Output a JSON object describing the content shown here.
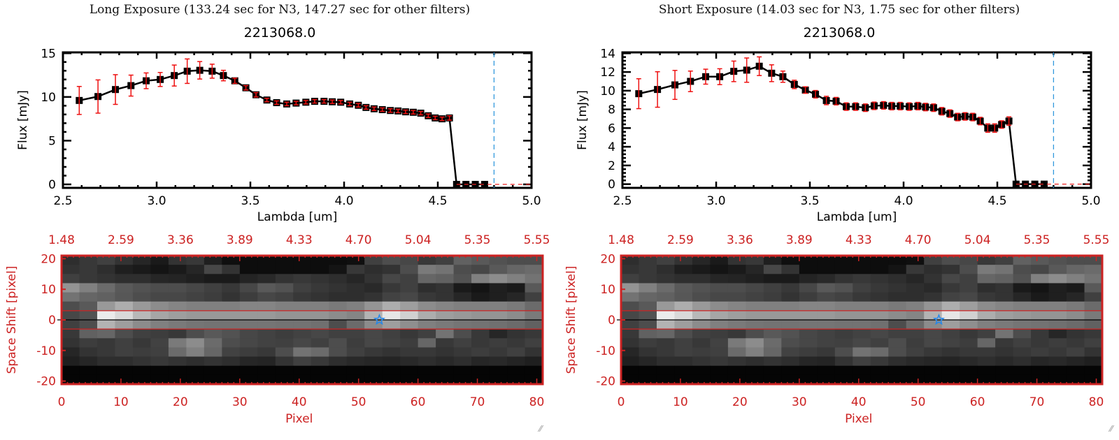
{
  "chart_data": [
    {
      "type": "line",
      "panel": "left",
      "title": "Long Exposure (133.24 sec for N3, 147.27 sec for other filters)",
      "subtitle": "2213068.0",
      "xlabel": "Lambda [um]",
      "ylabel": "Flux [mJy]",
      "xlim": [
        2.5,
        5.0
      ],
      "ylim": [
        -0.4,
        15.1
      ],
      "xticks": [
        "2.5",
        "3.0",
        "3.5",
        "4.0",
        "4.5",
        "5.0"
      ],
      "xtick_values": [
        2.5,
        3.0,
        3.5,
        4.0,
        4.5,
        5.0
      ],
      "yticks": [
        "0",
        "5",
        "10",
        "15"
      ],
      "ytick_values": [
        0,
        5,
        10,
        15
      ],
      "vline": 4.8,
      "hline": 0,
      "series": [
        {
          "name": "flux",
          "x": [
            2.587,
            2.687,
            2.78,
            2.863,
            2.944,
            3.019,
            3.094,
            3.163,
            3.23,
            3.296,
            3.356,
            3.417,
            3.476,
            3.53,
            3.588,
            3.64,
            3.694,
            3.744,
            3.796,
            3.843,
            3.893,
            3.937,
            3.982,
            4.03,
            4.076,
            4.117,
            4.16,
            4.204,
            4.247,
            4.288,
            4.328,
            4.369,
            4.409,
            4.449,
            4.486,
            4.523,
            4.562,
            4.6,
            4.65,
            4.7,
            4.75
          ],
          "y": [
            9.6,
            10.05,
            10.85,
            11.3,
            11.85,
            12.0,
            12.45,
            12.95,
            13.05,
            12.95,
            12.45,
            11.85,
            11.05,
            10.25,
            9.65,
            9.35,
            9.2,
            9.3,
            9.4,
            9.5,
            9.5,
            9.45,
            9.4,
            9.2,
            9.05,
            8.8,
            8.65,
            8.55,
            8.45,
            8.4,
            8.3,
            8.25,
            8.15,
            7.85,
            7.6,
            7.5,
            7.6,
            0,
            0,
            0,
            0
          ],
          "err": [
            1.6,
            1.9,
            1.7,
            1.2,
            0.9,
            0.8,
            1.2,
            1.4,
            1.0,
            0.8,
            0.6,
            0.3,
            0.25,
            0.25,
            0.2,
            0.2,
            0.2,
            0.2,
            0.2,
            0.2,
            0.2,
            0.2,
            0.2,
            0.2,
            0.2,
            0.2,
            0.2,
            0.2,
            0.2,
            0.2,
            0.2,
            0.2,
            0.2,
            0.2,
            0.2,
            0.2,
            0.25,
            0,
            0,
            0,
            0
          ]
        }
      ]
    },
    {
      "type": "line",
      "panel": "right",
      "title": "Short Exposure (14.03 sec for N3, 1.75 sec for other filters)",
      "subtitle": "2213068.0",
      "xlabel": "Lambda [um]",
      "ylabel": "Flux [mJy]",
      "xlim": [
        2.5,
        5.0
      ],
      "ylim": [
        -0.4,
        14.1
      ],
      "xticks": [
        "2.5",
        "3.0",
        "3.5",
        "4.0",
        "4.5",
        "5.0"
      ],
      "xtick_values": [
        2.5,
        3.0,
        3.5,
        4.0,
        4.5,
        5.0
      ],
      "yticks": [
        "0",
        "2",
        "4",
        "6",
        "8",
        "10",
        "12",
        "14"
      ],
      "ytick_values": [
        0,
        2,
        4,
        6,
        8,
        10,
        12,
        14
      ],
      "vline": 4.8,
      "hline": 0,
      "series": [
        {
          "name": "flux",
          "x": [
            2.587,
            2.687,
            2.78,
            2.863,
            2.944,
            3.019,
            3.094,
            3.163,
            3.23,
            3.296,
            3.356,
            3.417,
            3.476,
            3.53,
            3.588,
            3.64,
            3.694,
            3.744,
            3.796,
            3.843,
            3.893,
            3.937,
            3.982,
            4.03,
            4.076,
            4.117,
            4.16,
            4.204,
            4.247,
            4.288,
            4.328,
            4.369,
            4.409,
            4.449,
            4.486,
            4.523,
            4.562,
            4.6,
            4.65,
            4.7,
            4.75
          ],
          "y": [
            9.68,
            10.13,
            10.62,
            11.0,
            11.5,
            11.5,
            12.07,
            12.2,
            12.62,
            11.87,
            11.5,
            10.67,
            10.07,
            9.62,
            8.95,
            8.88,
            8.3,
            8.3,
            8.18,
            8.38,
            8.43,
            8.35,
            8.35,
            8.3,
            8.35,
            8.25,
            8.18,
            7.8,
            7.55,
            7.18,
            7.25,
            7.18,
            6.75,
            6.0,
            6.0,
            6.38,
            6.75,
            0,
            0,
            0,
            0
          ],
          "err": [
            1.6,
            1.9,
            1.55,
            1.1,
            0.8,
            0.85,
            1.1,
            1.3,
            1.0,
            0.9,
            0.6,
            0.45,
            0.35,
            0.4,
            0.45,
            0.4,
            0.4,
            0.4,
            0.4,
            0.4,
            0.4,
            0.4,
            0.4,
            0.4,
            0.4,
            0.4,
            0.4,
            0.4,
            0.4,
            0.4,
            0.4,
            0.4,
            0.4,
            0.45,
            0.45,
            0.4,
            0.45,
            0,
            0,
            0,
            0
          ]
        }
      ]
    },
    {
      "type": "heatmap",
      "panel": "both",
      "xlabel": "Pixel",
      "ylabel": "Space Shift [pixel]",
      "xlim": [
        0,
        81
      ],
      "ylim": [
        -21,
        21
      ],
      "xticks": [
        "0",
        "10",
        "20",
        "30",
        "40",
        "50",
        "60",
        "70",
        "80"
      ],
      "xtick_values": [
        0,
        10,
        20,
        30,
        40,
        50,
        60,
        70,
        80
      ],
      "yticks": [
        "20",
        "10",
        "0",
        "-10",
        "-20"
      ],
      "ytick_values": [
        20,
        10,
        0,
        -10,
        -20
      ],
      "top_xticks": [
        "1.48",
        "2.59",
        "3.36",
        "3.89",
        "4.33",
        "4.70",
        "5.04",
        "5.35",
        "5.55"
      ],
      "aperture_lines": [
        3,
        -3
      ],
      "center_line": 0,
      "source_marker": {
        "x": 53.5,
        "y": 0,
        "symbol": "star"
      },
      "grid_cols": 27,
      "grid_rows": 14,
      "intensity_rows": [
        [
          0.18,
          0.22,
          0.25,
          0.2,
          0.15,
          0.1,
          0.2,
          0.22,
          0.12,
          0.06,
          0.05,
          0.05,
          0.05,
          0.05,
          0.05,
          0.05,
          0.06,
          0.25,
          0.3,
          0.28,
          0.22,
          0.25,
          0.38,
          0.35,
          0.32,
          0.3,
          0.3
        ],
        [
          0.2,
          0.22,
          0.18,
          0.12,
          0.1,
          0.08,
          0.1,
          0.15,
          0.28,
          0.2,
          0.05,
          0.05,
          0.05,
          0.05,
          0.05,
          0.08,
          0.22,
          0.18,
          0.2,
          0.3,
          0.48,
          0.45,
          0.3,
          0.28,
          0.35,
          0.4,
          0.42
        ],
        [
          0.25,
          0.22,
          0.2,
          0.18,
          0.18,
          0.15,
          0.14,
          0.12,
          0.1,
          0.1,
          0.14,
          0.16,
          0.2,
          0.22,
          0.2,
          0.18,
          0.15,
          0.2,
          0.28,
          0.25,
          0.4,
          0.38,
          0.32,
          0.5,
          0.55,
          0.5,
          0.45
        ],
        [
          0.58,
          0.5,
          0.42,
          0.35,
          0.32,
          0.3,
          0.3,
          0.28,
          0.25,
          0.22,
          0.28,
          0.35,
          0.32,
          0.25,
          0.22,
          0.2,
          0.18,
          0.16,
          0.22,
          0.25,
          0.18,
          0.2,
          0.1,
          0.08,
          0.12,
          0.1,
          0.35
        ],
        [
          0.45,
          0.4,
          0.38,
          0.34,
          0.3,
          0.28,
          0.28,
          0.26,
          0.24,
          0.2,
          0.24,
          0.28,
          0.26,
          0.22,
          0.2,
          0.18,
          0.18,
          0.2,
          0.26,
          0.28,
          0.22,
          0.2,
          0.15,
          0.1,
          0.12,
          0.15,
          0.25
        ],
        [
          0.3,
          0.35,
          0.6,
          0.68,
          0.6,
          0.55,
          0.52,
          0.5,
          0.5,
          0.5,
          0.52,
          0.52,
          0.5,
          0.5,
          0.5,
          0.48,
          0.5,
          0.58,
          0.68,
          0.62,
          0.55,
          0.52,
          0.5,
          0.5,
          0.5,
          0.48,
          0.42
        ],
        [
          0.28,
          0.32,
          0.92,
          0.85,
          0.72,
          0.65,
          0.62,
          0.6,
          0.6,
          0.6,
          0.6,
          0.6,
          0.58,
          0.58,
          0.58,
          0.55,
          0.52,
          0.7,
          0.9,
          0.82,
          0.68,
          0.62,
          0.6,
          0.58,
          0.58,
          0.55,
          0.48
        ],
        [
          0.25,
          0.3,
          0.7,
          0.62,
          0.55,
          0.5,
          0.48,
          0.46,
          0.45,
          0.45,
          0.46,
          0.46,
          0.45,
          0.45,
          0.44,
          0.3,
          0.42,
          0.55,
          0.62,
          0.56,
          0.5,
          0.48,
          0.46,
          0.45,
          0.44,
          0.42,
          0.38
        ],
        [
          0.22,
          0.38,
          0.4,
          0.3,
          0.25,
          0.24,
          0.22,
          0.3,
          0.35,
          0.32,
          0.28,
          0.26,
          0.24,
          0.26,
          0.28,
          0.25,
          0.25,
          0.28,
          0.25,
          0.22,
          0.25,
          0.45,
          0.3,
          0.22,
          0.15,
          0.2,
          0.22
        ],
        [
          0.2,
          0.24,
          0.22,
          0.25,
          0.22,
          0.26,
          0.48,
          0.55,
          0.42,
          0.3,
          0.28,
          0.26,
          0.25,
          0.28,
          0.25,
          0.3,
          0.24,
          0.28,
          0.26,
          0.24,
          0.4,
          0.22,
          0.25,
          0.22,
          0.24,
          0.22,
          0.25
        ],
        [
          0.15,
          0.2,
          0.22,
          0.25,
          0.24,
          0.25,
          0.42,
          0.5,
          0.4,
          0.26,
          0.24,
          0.22,
          0.3,
          0.45,
          0.42,
          0.3,
          0.25,
          0.22,
          0.2,
          0.22,
          0.22,
          0.2,
          0.22,
          0.24,
          0.22,
          0.25,
          0.2
        ],
        [
          0.12,
          0.15,
          0.18,
          0.18,
          0.2,
          0.22,
          0.2,
          0.18,
          0.2,
          0.18,
          0.15,
          0.14,
          0.2,
          0.25,
          0.22,
          0.18,
          0.16,
          0.15,
          0.14,
          0.16,
          0.18,
          0.16,
          0.18,
          0.15,
          0.16,
          0.14,
          0.12
        ],
        [
          0.02,
          0.02,
          0.02,
          0.02,
          0.02,
          0.02,
          0.02,
          0.02,
          0.02,
          0.02,
          0.02,
          0.02,
          0.02,
          0.02,
          0.02,
          0.02,
          0.02,
          0.02,
          0.02,
          0.02,
          0.02,
          0.02,
          0.02,
          0.02,
          0.02,
          0.02,
          0.02
        ],
        [
          0.02,
          0.02,
          0.02,
          0.02,
          0.02,
          0.02,
          0.02,
          0.02,
          0.02,
          0.02,
          0.02,
          0.02,
          0.02,
          0.02,
          0.02,
          0.02,
          0.02,
          0.02,
          0.02,
          0.02,
          0.02,
          0.02,
          0.02,
          0.02,
          0.02,
          0.02,
          0.02
        ]
      ]
    }
  ],
  "panels": [
    {
      "title": "Long Exposure (133.24 sec for N3, 147.27 sec for other filters)",
      "object_id": "2213068.0"
    },
    {
      "title": "Short Exposure (14.03 sec for N3, 1.75 sec for other filters)",
      "object_id": "2213068.0"
    }
  ],
  "colors": {
    "axis_red": "#cc2222",
    "error_bar": "#ee1111",
    "marker": "#000000",
    "vline": "#3399dd",
    "hline": "#ee2222",
    "star": "#2288ee"
  },
  "resize_grip_icon": "resize-grip-icon"
}
